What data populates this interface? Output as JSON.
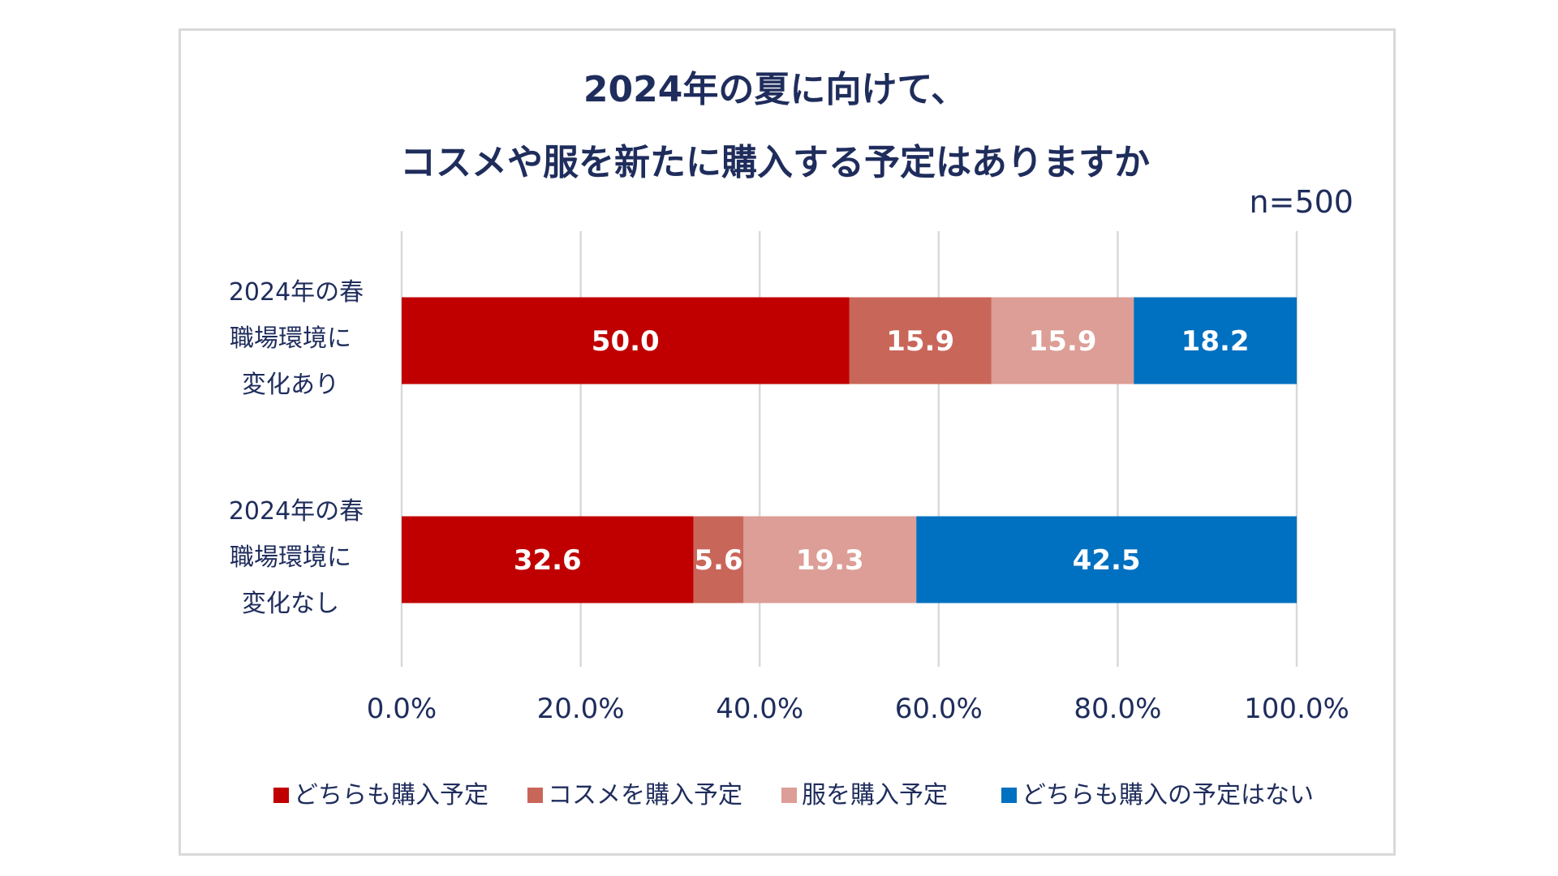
{
  "chart_data": {
    "type": "bar",
    "orientation": "horizontal",
    "stacked": true,
    "title_lines": [
      "2024年の夏に向けて、",
      "コスメや服を新たに購入する予定はありますか"
    ],
    "sample_note": "n=500",
    "categories": [
      [
        "2024年の春",
        "職場環境に",
        "変化あり"
      ],
      [
        "2024年の春",
        "職場環境に",
        "変化なし"
      ]
    ],
    "series": [
      {
        "name": "どちらも購入予定",
        "color": "#c00000",
        "values": [
          50.0,
          32.6
        ]
      },
      {
        "name": "コスメを購入予定",
        "color": "#c9665a",
        "values": [
          15.9,
          5.6
        ]
      },
      {
        "name": "服を購入予定",
        "color": "#dc9e96",
        "values": [
          15.9,
          19.3
        ]
      },
      {
        "name": "どちらも購入の予定はない",
        "color": "#0070c0",
        "values": [
          18.2,
          42.5
        ]
      }
    ],
    "data_labels": [
      [
        "50.0",
        "15.9",
        "15.9",
        "18.2"
      ],
      [
        "32.6",
        "5.6",
        "19.3",
        "42.5"
      ]
    ],
    "xlim": [
      0,
      100
    ],
    "x_ticks": [
      0,
      20,
      40,
      60,
      80,
      100
    ],
    "x_tick_labels": [
      "0.0%",
      "20.0%",
      "40.0%",
      "60.0%",
      "80.0%",
      "100.0%"
    ],
    "grid": true,
    "legend_position": "bottom"
  }
}
